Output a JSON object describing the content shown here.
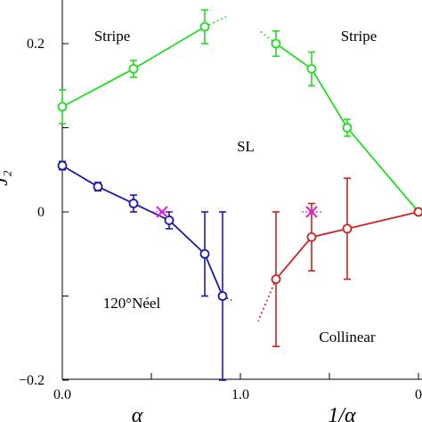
{
  "chart_data": {
    "type": "scatter",
    "xlabel_left": "α",
    "xlabel_right": "1/α",
    "ylabel": "J₂",
    "x_tick_labels": [
      "0.0",
      "1.0",
      "0"
    ],
    "y_tick_labels": [
      "0.2",
      "0",
      "−0.2"
    ],
    "ylim": [
      -0.2,
      0.25
    ],
    "grid": false,
    "region_labels": {
      "stripe_left": "Stripe",
      "stripe_right": "Stripe",
      "sl": "SL",
      "neel": "120°Néel",
      "collinear": "Collinear"
    },
    "series": [
      {
        "color": "#22dd22",
        "points": [
          {
            "x": 0.0,
            "y": 0.125,
            "err": 0.02
          },
          {
            "x": 0.4,
            "y": 0.17,
            "err": 0.01
          },
          {
            "x": 0.8,
            "y": 0.22,
            "err": 0.02
          }
        ]
      },
      {
        "color": "#22dd22",
        "points": [
          {
            "x": 1.2,
            "y": 0.2,
            "err": 0.015
          },
          {
            "x": 1.4,
            "y": 0.17,
            "err": 0.02
          },
          {
            "x": 1.6,
            "y": 0.1,
            "err": 0.01
          },
          {
            "x": 2.0,
            "y": 0.0,
            "err": 0
          }
        ]
      },
      {
        "color": "#1a1aaa",
        "points": [
          {
            "x": 0.0,
            "y": 0.055,
            "err": 0.005
          },
          {
            "x": 0.2,
            "y": 0.03,
            "err": 0.005
          },
          {
            "x": 0.4,
            "y": 0.01,
            "err": 0.01
          },
          {
            "x": 0.6,
            "y": -0.01,
            "err": 0.01
          },
          {
            "x": 0.8,
            "y": -0.05,
            "err": 0.05
          },
          {
            "x": 0.9,
            "y": -0.1,
            "err": 0.1
          }
        ]
      },
      {
        "color": "#cc2222",
        "points": [
          {
            "x": 1.2,
            "y": -0.08,
            "err": 0.08
          },
          {
            "x": 1.4,
            "y": -0.03,
            "err": 0.04
          },
          {
            "x": 1.6,
            "y": -0.02,
            "err": 0.06
          },
          {
            "x": 2.0,
            "y": 0.0,
            "err": 0
          }
        ]
      }
    ],
    "crosses": [
      {
        "x": 0.56,
        "y": 0.0,
        "color": "#dd22dd"
      },
      {
        "x": 1.4,
        "y": 0.0,
        "color": "#dd22dd"
      }
    ]
  }
}
